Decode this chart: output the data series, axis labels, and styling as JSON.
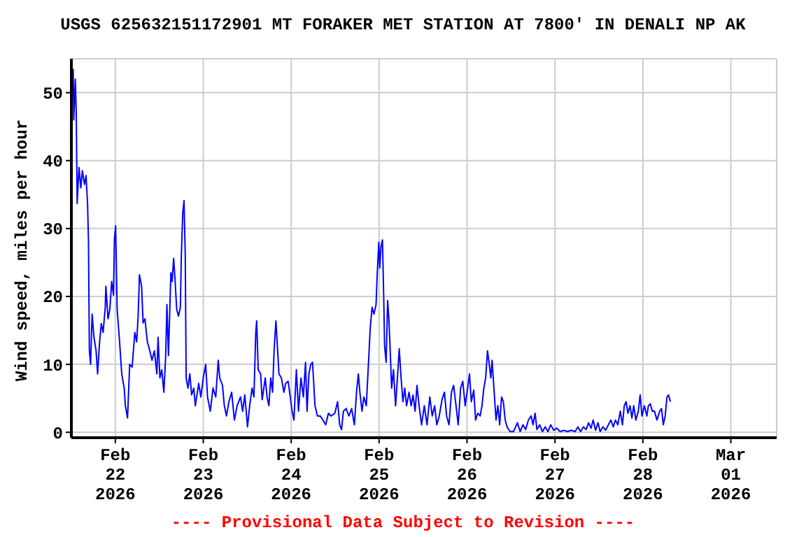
{
  "chart_data": {
    "type": "line",
    "title": "USGS 625632151172901 MT FORAKER MET STATION AT 7800' IN DENALI NP AK",
    "ylabel": "Wind speed, miles per hour",
    "annotations": [
      "---- Provisional Data Subject to Revision ----"
    ],
    "color": "#0000ff",
    "grid": true,
    "xlim": [
      "2026-02-21T12:00",
      "2026-03-01T12:30"
    ],
    "ylim": [
      -0.8,
      55
    ],
    "yticks": [
      0,
      10,
      20,
      30,
      40,
      50
    ],
    "xticks": [
      {
        "value": "2026-02-22",
        "label": "Feb\n22\n2026"
      },
      {
        "value": "2026-02-23",
        "label": "Feb\n23\n2026"
      },
      {
        "value": "2026-02-24",
        "label": "Feb\n24\n2026"
      },
      {
        "value": "2026-02-25",
        "label": "Feb\n25\n2026"
      },
      {
        "value": "2026-02-26",
        "label": "Feb\n26\n2026"
      },
      {
        "value": "2026-02-27",
        "label": "Feb\n27\n2026"
      },
      {
        "value": "2026-02-28",
        "label": "Feb\n28\n2026"
      },
      {
        "value": "2026-03-01",
        "label": "Mar\n01\n2026"
      }
    ],
    "x": [
      "2026-02-21T12:30",
      "2026-02-21T12:40",
      "2026-02-21T13:05",
      "2026-02-21T13:20",
      "2026-02-21T13:35",
      "2026-02-21T14:05",
      "2026-02-21T14:35",
      "2026-02-21T15:00",
      "2026-02-21T15:35",
      "2026-02-21T16:00",
      "2026-02-21T16:25",
      "2026-02-21T16:40",
      "2026-02-21T16:55",
      "2026-02-21T17:15",
      "2026-02-21T17:40",
      "2026-02-21T18:10",
      "2026-02-21T18:45",
      "2026-02-21T19:10",
      "2026-02-21T19:40",
      "2026-02-21T20:10",
      "2026-02-21T20:40",
      "2026-02-21T21:15",
      "2026-02-21T21:25",
      "2026-02-21T22:00",
      "2026-02-21T22:30",
      "2026-02-21T23:00",
      "2026-02-21T23:30",
      "2026-02-21T23:45",
      "2026-02-22T00:05",
      "2026-02-22T00:30",
      "2026-02-22T01:10",
      "2026-02-22T01:45",
      "2026-02-22T02:25",
      "2026-02-22T02:45",
      "2026-02-22T03:20",
      "2026-02-22T03:55",
      "2026-02-22T04:35",
      "2026-02-22T05:20",
      "2026-02-22T05:50",
      "2026-02-22T06:15",
      "2026-02-22T06:35",
      "2026-02-22T07:10",
      "2026-02-22T07:35",
      "2026-02-22T08:05",
      "2026-02-22T08:45",
      "2026-02-22T09:25",
      "2026-02-22T10:00",
      "2026-02-22T10:40",
      "2026-02-22T11:20",
      "2026-02-22T11:40",
      "2026-02-22T12:10",
      "2026-02-22T12:40",
      "2026-02-22T13:15",
      "2026-02-22T13:45",
      "2026-02-22T14:05",
      "2026-02-22T14:30",
      "2026-02-22T15:10",
      "2026-02-22T15:30",
      "2026-02-22T15:55",
      "2026-02-22T16:15",
      "2026-02-22T16:45",
      "2026-02-22T17:15",
      "2026-02-22T17:45",
      "2026-02-22T18:00",
      "2026-02-22T18:25",
      "2026-02-22T18:45",
      "2026-02-22T19:05",
      "2026-02-22T19:20",
      "2026-02-22T19:50",
      "2026-02-22T20:20",
      "2026-02-22T20:50",
      "2026-02-22T21:25",
      "2026-02-22T21:50",
      "2026-02-22T22:45",
      "2026-02-22T23:20",
      "2026-02-23T00:00",
      "2026-02-23T00:40",
      "2026-02-23T01:10",
      "2026-02-23T01:55",
      "2026-02-23T02:40",
      "2026-02-23T03:25",
      "2026-02-23T04:05",
      "2026-02-23T04:30",
      "2026-02-23T05:15",
      "2026-02-23T05:45",
      "2026-02-23T06:20",
      "2026-02-23T07:00",
      "2026-02-23T07:45",
      "2026-02-23T08:30",
      "2026-02-23T09:15",
      "2026-02-23T10:10",
      "2026-02-23T10:45",
      "2026-02-23T11:20",
      "2026-02-23T12:05",
      "2026-02-23T12:40",
      "2026-02-23T13:20",
      "2026-02-23T13:50",
      "2026-02-23T14:20",
      "2026-02-23T14:35",
      "2026-02-23T15:00",
      "2026-02-23T15:40",
      "2026-02-23T16:05",
      "2026-02-23T16:55",
      "2026-02-23T17:25",
      "2026-02-23T17:55",
      "2026-02-23T18:25",
      "2026-02-23T18:55",
      "2026-02-23T19:20",
      "2026-02-23T19:50",
      "2026-02-23T20:10",
      "2026-02-23T20:40",
      "2026-02-23T21:20",
      "2026-02-23T22:00",
      "2026-02-23T22:30",
      "2026-02-23T23:10",
      "2026-02-23T23:45",
      "2026-02-24T00:15",
      "2026-02-24T00:45",
      "2026-02-24T01:25",
      "2026-02-24T02:00",
      "2026-02-24T02:40",
      "2026-02-24T03:20",
      "2026-02-24T03:55",
      "2026-02-24T04:20",
      "2026-02-24T04:50",
      "2026-02-24T05:20",
      "2026-02-24T05:50",
      "2026-02-24T06:30",
      "2026-02-24T07:10",
      "2026-02-24T07:55",
      "2026-02-24T08:40",
      "2026-02-24T09:25",
      "2026-02-24T10:10",
      "2026-02-24T10:55",
      "2026-02-24T11:55",
      "2026-02-24T12:40",
      "2026-02-24T13:15",
      "2026-02-24T13:45",
      "2026-02-24T14:15",
      "2026-02-24T15:00",
      "2026-02-24T15:45",
      "2026-02-24T16:30",
      "2026-02-24T17:15",
      "2026-02-24T17:50",
      "2026-02-24T18:20",
      "2026-02-24T18:45",
      "2026-02-24T19:20",
      "2026-02-24T19:50",
      "2026-02-24T20:30",
      "2026-02-24T21:05",
      "2026-02-24T21:35",
      "2026-02-24T22:05",
      "2026-02-24T22:35",
      "2026-02-24T23:10",
      "2026-02-24T23:30",
      "2026-02-24T23:55",
      "2026-02-25T00:10",
      "2026-02-25T00:30",
      "2026-02-25T00:55",
      "2026-02-25T01:15",
      "2026-02-25T01:30",
      "2026-02-25T01:55",
      "2026-02-25T02:20",
      "2026-02-25T02:40",
      "2026-02-25T03:05",
      "2026-02-25T03:25",
      "2026-02-25T03:55",
      "2026-02-25T04:30",
      "2026-02-25T05:00",
      "2026-02-25T05:30",
      "2026-02-25T06:00",
      "2026-02-25T06:30",
      "2026-02-25T07:00",
      "2026-02-25T07:30",
      "2026-02-25T08:10",
      "2026-02-25T08:45",
      "2026-02-25T09:15",
      "2026-02-25T09:50",
      "2026-02-25T10:20",
      "2026-02-25T10:55",
      "2026-02-25T11:35",
      "2026-02-25T12:20",
      "2026-02-25T13:05",
      "2026-02-25T13:50",
      "2026-02-25T14:30",
      "2026-02-25T15:10",
      "2026-02-25T15:45",
      "2026-02-25T16:25",
      "2026-02-25T17:10",
      "2026-02-25T17:50",
      "2026-02-25T18:25",
      "2026-02-25T19:05",
      "2026-02-25T19:45",
      "2026-02-25T20:20",
      "2026-02-25T21:00",
      "2026-02-25T21:35",
      "2026-02-25T22:15",
      "2026-02-25T22:50",
      "2026-02-25T23:30",
      "2026-02-26T00:10",
      "2026-02-26T00:40",
      "2026-02-26T01:10",
      "2026-02-26T01:50",
      "2026-02-26T02:20",
      "2026-02-26T02:55",
      "2026-02-26T03:35",
      "2026-02-26T04:05",
      "2026-02-26T04:35",
      "2026-02-26T05:05",
      "2026-02-26T05:35",
      "2026-02-26T06:00",
      "2026-02-26T06:30",
      "2026-02-26T06:50",
      "2026-02-26T07:20",
      "2026-02-26T07:55",
      "2026-02-26T08:25",
      "2026-02-26T08:55",
      "2026-02-26T09:25",
      "2026-02-26T09:55",
      "2026-02-26T10:25",
      "2026-02-26T10:55",
      "2026-02-26T11:45",
      "2026-02-26T12:40",
      "2026-02-26T13:30",
      "2026-02-26T13:45",
      "2026-02-26T14:30",
      "2026-02-26T15:15",
      "2026-02-26T16:00",
      "2026-02-26T16:45",
      "2026-02-26T17:30",
      "2026-02-26T18:00",
      "2026-02-26T18:35",
      "2026-02-26T19:05",
      "2026-02-26T19:50",
      "2026-02-26T20:35",
      "2026-02-26T21:20",
      "2026-02-26T22:05",
      "2026-02-26T22:50",
      "2026-02-26T23:40",
      "2026-02-27T00:30",
      "2026-02-27T01:25",
      "2026-02-27T02:25",
      "2026-02-27T03:25",
      "2026-02-27T04:30",
      "2026-02-27T05:30",
      "2026-02-27T06:15",
      "2026-02-27T07:00",
      "2026-02-27T07:45",
      "2026-02-27T08:30",
      "2026-02-27T09:10",
      "2026-02-27T09:50",
      "2026-02-27T10:25",
      "2026-02-27T11:05",
      "2026-02-27T11:45",
      "2026-02-27T12:20",
      "2026-02-27T13:05",
      "2026-02-27T13:50",
      "2026-02-27T14:35",
      "2026-02-27T15:15",
      "2026-02-27T15:55",
      "2026-02-27T16:30",
      "2026-02-27T17:10",
      "2026-02-27T17:50",
      "2026-02-27T18:25",
      "2026-02-27T18:55",
      "2026-02-27T19:25",
      "2026-02-27T19:55",
      "2026-02-27T20:30",
      "2026-02-27T21:00",
      "2026-02-27T21:30",
      "2026-02-27T22:05",
      "2026-02-27T22:45",
      "2026-02-27T23:15",
      "2026-02-27T23:45",
      "2026-02-28T00:25",
      "2026-02-28T01:05",
      "2026-02-28T01:30",
      "2026-02-28T02:00",
      "2026-02-28T02:35",
      "2026-02-28T03:10",
      "2026-02-28T03:50",
      "2026-02-28T04:35",
      "2026-02-28T05:05",
      "2026-02-28T05:35",
      "2026-02-28T06:05",
      "2026-02-28T06:35",
      "2026-02-28T07:00",
      "2026-02-28T07:30"
    ],
    "values": [
      53.5,
      46,
      52,
      47,
      33.7,
      39,
      36,
      38.5,
      36.5,
      37.8,
      33.7,
      28.3,
      12,
      10,
      17.4,
      14,
      12,
      8.6,
      13,
      16,
      14.7,
      18.4,
      21.5,
      16.7,
      18.1,
      22.2,
      20.2,
      28.4,
      30.4,
      18.1,
      13.3,
      8.6,
      6.5,
      3.9,
      2.1,
      10,
      9.6,
      14.7,
      13.3,
      17.4,
      23.2,
      21.5,
      16.1,
      16.7,
      13.3,
      12,
      10.6,
      12,
      8.6,
      14,
      8,
      9.2,
      5.9,
      11.3,
      18.8,
      11.3,
      23.5,
      22.2,
      25.6,
      22.9,
      18.1,
      17.1,
      18.4,
      25.6,
      32.4,
      34.1,
      26.3,
      8,
      6.5,
      8.6,
      5.5,
      6.5,
      3.9,
      7.2,
      5.2,
      8,
      10,
      5.2,
      3.1,
      6.5,
      5.2,
      10.6,
      8,
      6.9,
      3.9,
      2.4,
      4.5,
      5.9,
      1.8,
      3.9,
      5.2,
      3.1,
      5.5,
      0.8,
      3.9,
      6.5,
      5.2,
      14.7,
      16.4,
      9.2,
      8.6,
      4.8,
      8,
      5.2,
      3.9,
      8,
      5.9,
      12,
      16.4,
      13.3,
      8.6,
      8,
      5.9,
      7.2,
      7.5,
      5.2,
      3.1,
      1.8,
      9.2,
      3.1,
      8,
      5.2,
      10.3,
      3.1,
      8.6,
      10,
      10.3,
      3.9,
      2.4,
      2.4,
      1.8,
      1.1,
      2.8,
      2.4,
      2.8,
      4.5,
      1.1,
      0.4,
      3.1,
      3.5,
      2.4,
      3.5,
      1.1,
      5.9,
      8.6,
      5.9,
      3.1,
      5.2,
      3.9,
      10,
      15.4,
      18.4,
      17.4,
      18.8,
      23.5,
      28,
      24.2,
      27.3,
      28.3,
      20.1,
      12.7,
      10.3,
      19.4,
      16.7,
      11.3,
      6.5,
      9.2,
      3.9,
      8,
      12.3,
      8,
      4.5,
      6.5,
      3.9,
      5.9,
      3.9,
      5.5,
      3.1,
      6.9,
      3.9,
      1.1,
      3.9,
      1.1,
      5.2,
      2.4,
      3.9,
      1.1,
      2.4,
      4.8,
      5.9,
      2.4,
      1.1,
      5.9,
      6.9,
      3.9,
      1.1,
      6.5,
      7.5,
      3.9,
      6.5,
      8.6,
      4.5,
      6.2,
      1.8,
      2.8,
      2.4,
      3.9,
      6.5,
      8,
      12,
      10.3,
      8,
      10.6,
      6.5,
      1.8,
      3.9,
      1.1,
      5.2,
      4.5,
      1.8,
      0.8,
      0.1,
      0.1,
      1.1,
      1.4,
      0.1,
      1.1,
      0.4,
      1.8,
      2.4,
      1.1,
      2.8,
      0.4,
      1.1,
      0.1,
      0.8,
      0.1,
      1.1,
      0.3,
      0.6,
      0.1,
      0.3,
      0.1,
      0.3,
      0.1,
      0.8,
      0.1,
      0.8,
      0.4,
      1.4,
      0.6,
      1.8,
      0.3,
      1.4,
      0.1,
      0.8,
      0.3,
      1.1,
      1.8,
      0.8,
      1.8,
      1.1,
      3.1,
      1.1,
      3.9,
      4.5,
      2.8,
      3.9,
      2.1,
      3.9,
      1.8,
      3.1,
      5.5,
      2.4,
      3.9,
      2.4,
      3.9,
      4.2,
      3.1,
      3.1,
      1.8,
      3.1,
      3.5,
      1.1,
      2.4,
      5.2,
      5.5,
      4.5
    ]
  }
}
